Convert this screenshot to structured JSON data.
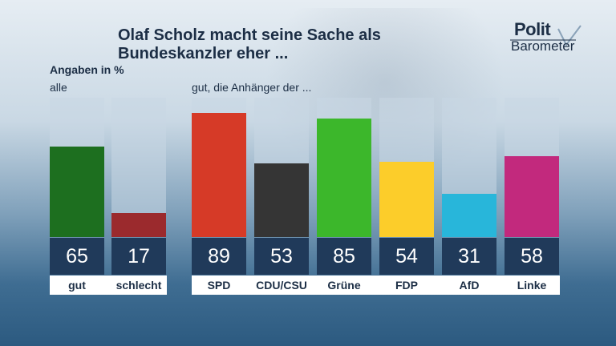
{
  "title": "Olaf Scholz macht seine Sache als Bundeskanzler eher ...",
  "logo": {
    "line1": "Polit",
    "line2": "Barometer"
  },
  "unit_note": "Angaben in %",
  "left_panel_label": "alle",
  "right_panel_label": "gut, die Anhänger der ...",
  "chart_data": [
    {
      "type": "bar",
      "title": "alle",
      "categories": [
        "gut",
        "schlecht"
      ],
      "values": [
        65,
        17
      ],
      "colors": [
        "#1d6f1f",
        "#9b2a2d"
      ],
      "ylim": [
        0,
        100
      ]
    },
    {
      "type": "bar",
      "title": "gut, die Anhänger der ...",
      "categories": [
        "SPD",
        "CDU/CSU",
        "Grüne",
        "FDP",
        "AfD",
        "Linke"
      ],
      "values": [
        89,
        53,
        85,
        54,
        31,
        58
      ],
      "colors": [
        "#d63a27",
        "#353535",
        "#3cb72b",
        "#fccd2a",
        "#28b6da",
        "#c2297d"
      ],
      "ylim": [
        0,
        100
      ]
    }
  ]
}
